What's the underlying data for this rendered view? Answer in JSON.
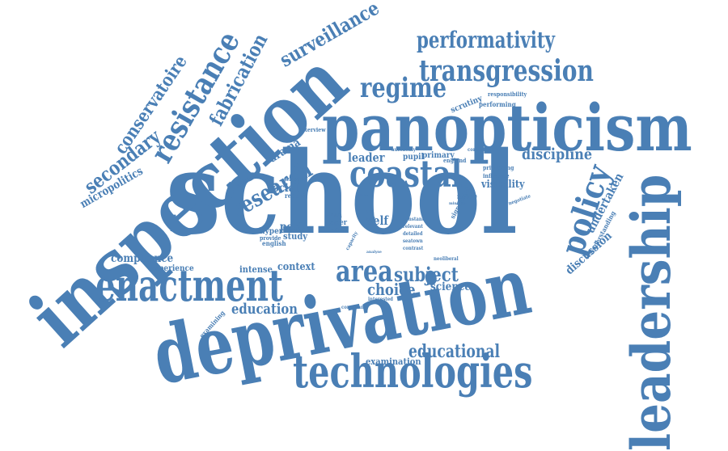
{
  "word_cloud": {
    "color": "#4a7fb5",
    "words": [
      "school",
      "inspection",
      "deprivation",
      "panopticism",
      "leadership",
      "enactment",
      "technologies",
      "coastal",
      "transgression",
      "performativity",
      "policy",
      "resistance",
      "regime",
      "area",
      "research",
      "surveillance",
      "fabrication",
      "conservatoire",
      "secondary",
      "micropolitics",
      "discipline",
      "educational",
      "education",
      "subject",
      "choice",
      "compliance",
      "undertaken",
      "discussion",
      "social",
      "science",
      "leader",
      "self",
      "context",
      "post",
      "visibility",
      "intense",
      "examination",
      "drama",
      "experience",
      "understanding",
      "scrutiny",
      "performing",
      "responsibility",
      "examining",
      "primary",
      "england",
      "pupil",
      "autonomy",
      "consistent",
      "privileging",
      "influence",
      "negotiate",
      "state",
      "data",
      "paper",
      "study",
      "english",
      "hyper",
      "provide",
      "recent",
      "wayside",
      "relation",
      "interview",
      "significant",
      "neoliberal",
      "constant",
      "relevant",
      "detailed",
      "seatown",
      "contrast",
      "compliant",
      "interested",
      "finding",
      "act",
      "art",
      "career",
      "capacity",
      "ministry",
      "analyse"
    ]
  }
}
